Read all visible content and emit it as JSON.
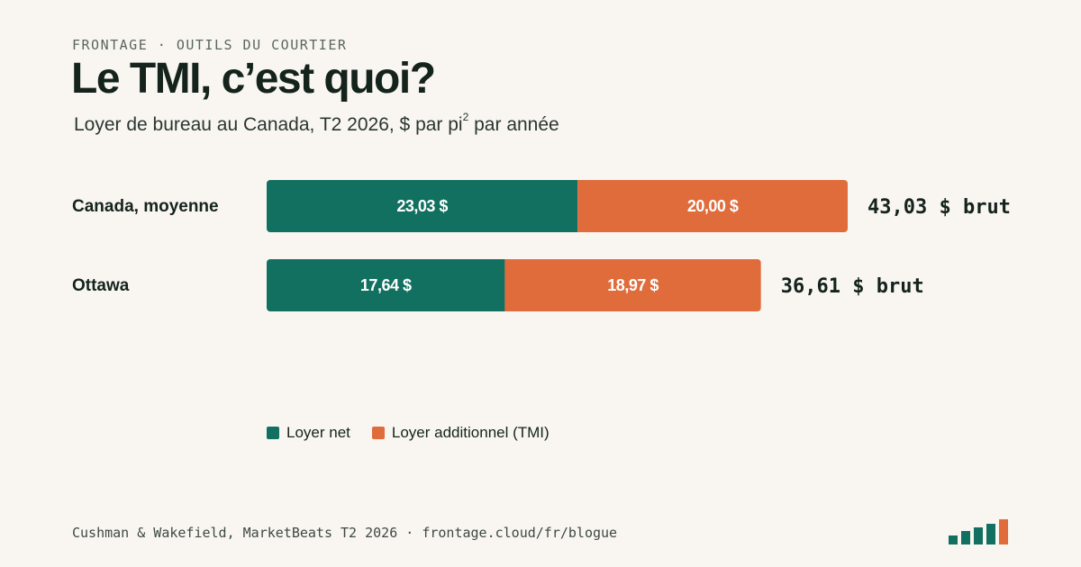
{
  "eyebrow": "FRONTAGE · OUTILS DU COURTIER",
  "title": "Le TMI, c’est quoi?",
  "subtitle": {
    "before": "Loyer de bureau au Canada, T2 2026, $ par pi",
    "sup": "2",
    "after": " par année"
  },
  "legend": {
    "net": "Loyer net",
    "tmi": "Loyer additionnel (TMI)"
  },
  "footer": "Cushman & Wakefield, MarketBeats T2 2026 · frontage.cloud/fr/blogue",
  "colors": {
    "net": "#11705f",
    "tmi": "#e06b3b",
    "background": "#f9f6f1",
    "text": "#14231c"
  },
  "icons": {
    "logo": "bar-chart-logo-icon"
  },
  "chart_data": {
    "type": "bar",
    "orientation": "horizontal",
    "stacked": true,
    "categories": [
      "Canada, moyenne",
      "Ottawa"
    ],
    "series": [
      {
        "name": "Loyer net",
        "values": [
          23.03,
          17.64
        ],
        "labels": [
          "23,03 $",
          "17,64 $"
        ]
      },
      {
        "name": "Loyer additionnel (TMI)",
        "values": [
          20.0,
          18.97
        ],
        "labels": [
          "20,00 $",
          "18,97 $"
        ]
      }
    ],
    "totals": [
      43.03,
      36.61
    ],
    "total_labels": [
      "43,03 $ brut",
      "36,61 $ brut"
    ],
    "xlim": [
      0,
      43.03
    ],
    "grid": false,
    "legend_position": "bottom-left"
  }
}
